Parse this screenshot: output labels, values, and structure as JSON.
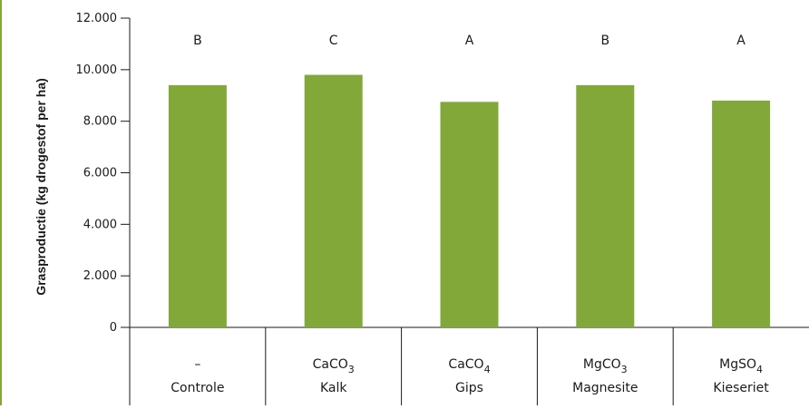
{
  "chart_data": {
    "type": "bar",
    "ylabel": "Grasproductie (kg drogestof per ha)",
    "ylim": [
      0,
      12000
    ],
    "yticks": [
      "0",
      "2.000",
      "4.000",
      "6.000",
      "8.000",
      "10.000",
      "12.000"
    ],
    "ytick_values": [
      0,
      2000,
      4000,
      6000,
      8000,
      10000,
      12000
    ],
    "grid": false,
    "legend": "none",
    "bar_color": "#82a83a",
    "categories": [
      {
        "formula": "–",
        "sub": "",
        "name": "Controle"
      },
      {
        "formula": "CaCO",
        "sub": "3",
        "name": "Kalk"
      },
      {
        "formula": "CaCO",
        "sub": "4",
        "name": "Gips"
      },
      {
        "formula": "MgCO",
        "sub": "3",
        "name": "Magnesite"
      },
      {
        "formula": "MgSO",
        "sub": "4",
        "name": "Kieseriet"
      }
    ],
    "values": [
      9400,
      9800,
      8750,
      9400,
      8800
    ],
    "letters": [
      "B",
      "C",
      "A",
      "B",
      "A"
    ]
  },
  "colors": {
    "accent_edge": "#82a83a",
    "axis": "#1a1a1a"
  }
}
